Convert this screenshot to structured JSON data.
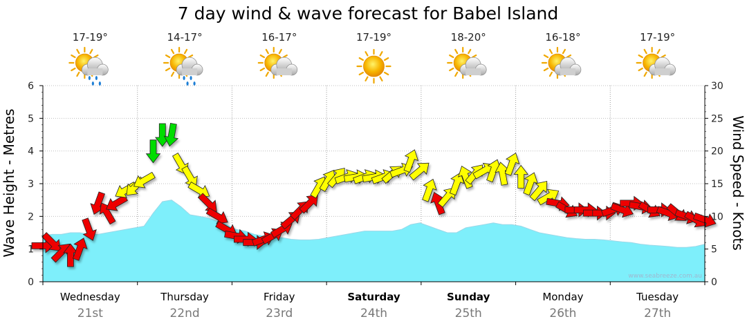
{
  "chart_data": {
    "type": "area",
    "title": "7 day wind & wave forecast for Babel Island",
    "y_left": {
      "label": "Wave Height - Metres",
      "range": [
        0,
        6
      ],
      "ticks": [
        0,
        1,
        2,
        3,
        4,
        5,
        6
      ]
    },
    "y_right": {
      "label": "Wind Speed - Knots",
      "range": [
        0,
        30
      ],
      "ticks": [
        0,
        5,
        10,
        15,
        20,
        25,
        30
      ]
    },
    "days": [
      {
        "name": "Wednesday",
        "date": "21st",
        "bold": false,
        "temp": "17-19°",
        "weather": "showers-icon"
      },
      {
        "name": "Thursday",
        "date": "22nd",
        "bold": false,
        "temp": "14-17°",
        "weather": "showers-icon"
      },
      {
        "name": "Friday",
        "date": "23rd",
        "bold": false,
        "temp": "16-17°",
        "weather": "partly-cloudy-icon"
      },
      {
        "name": "Saturday",
        "date": "24th",
        "bold": true,
        "temp": "17-19°",
        "weather": "sunny-icon"
      },
      {
        "name": "Sunday",
        "date": "25th",
        "bold": true,
        "temp": "18-20°",
        "weather": "partly-cloudy-icon"
      },
      {
        "name": "Monday",
        "date": "26th",
        "bold": false,
        "temp": "16-18°",
        "weather": "partly-cloudy-icon"
      },
      {
        "name": "Tuesday",
        "date": "27th",
        "bold": false,
        "temp": "17-19°",
        "weather": "partly-cloudy-icon"
      }
    ],
    "wave_height_m": [
      1.4,
      1.45,
      1.45,
      1.5,
      1.5,
      1.45,
      1.45,
      1.5,
      1.55,
      1.6,
      1.65,
      1.7,
      2.1,
      2.45,
      2.5,
      2.3,
      2.05,
      2.0,
      1.95,
      1.85,
      1.75,
      1.6,
      1.55,
      1.45,
      1.4,
      1.35,
      1.35,
      1.3,
      1.28,
      1.28,
      1.3,
      1.35,
      1.4,
      1.45,
      1.5,
      1.55,
      1.55,
      1.55,
      1.55,
      1.6,
      1.75,
      1.8,
      1.7,
      1.6,
      1.5,
      1.5,
      1.65,
      1.7,
      1.75,
      1.8,
      1.75,
      1.75,
      1.7,
      1.6,
      1.5,
      1.45,
      1.4,
      1.35,
      1.32,
      1.3,
      1.3,
      1.28,
      1.25,
      1.22,
      1.2,
      1.15,
      1.12,
      1.1,
      1.08,
      1.05,
      1.05,
      1.08,
      1.15
    ],
    "wind_speed_kn": [
      5.5,
      6,
      4.5,
      4,
      5,
      8,
      12,
      10.5,
      12,
      14,
      14.5,
      15.5,
      20,
      22.5,
      22.5,
      18,
      16,
      14,
      12,
      10,
      8,
      7,
      6.5,
      6,
      6.5,
      7,
      8,
      9.5,
      11,
      12,
      14.5,
      15.5,
      16,
      16,
      16,
      16,
      16,
      16,
      16.5,
      17,
      18.5,
      17,
      14,
      12,
      13,
      15,
      16,
      16.5,
      17,
      17,
      16.5,
      18,
      16,
      15,
      14,
      13,
      12,
      11,
      11,
      11,
      10.5,
      10.5,
      11,
      11,
      12,
      11.5,
      11,
      11,
      10.5,
      10.5,
      10,
      9.5,
      9.5
    ],
    "wind_direction_deg": [
      270,
      315,
      225,
      180,
      200,
      340,
      20,
      150,
      60,
      60,
      45,
      60,
      0,
      0,
      10,
      330,
      330,
      300,
      315,
      300,
      300,
      280,
      270,
      270,
      250,
      240,
      240,
      230,
      225,
      225,
      210,
      210,
      220,
      250,
      260,
      250,
      260,
      250,
      230,
      250,
      200,
      230,
      200,
      160,
      220,
      200,
      160,
      220,
      240,
      200,
      170,
      200,
      180,
      200,
      220,
      240,
      280,
      300,
      270,
      270,
      270,
      270,
      250,
      290,
      270,
      280,
      300,
      270,
      290,
      310,
      290,
      300,
      290
    ],
    "wind_category_colors": {
      "strong": "#ee0000",
      "moderate": "#ffff00",
      "light": "#00dd00"
    },
    "wave_fill_color": "#7eeffb",
    "watermark": "www.seabreeze.com.au"
  }
}
